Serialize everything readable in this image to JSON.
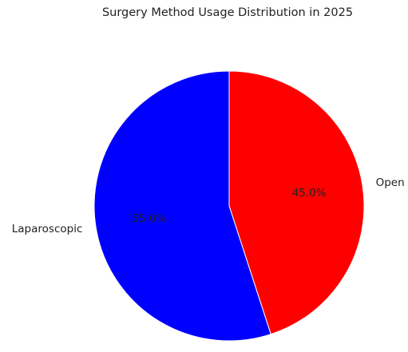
{
  "chart_data": {
    "type": "pie",
    "title": "Surgery Method Usage Distribution in 2025",
    "slices": [
      {
        "label": "Open",
        "value": 45.0,
        "pct_label": "45.0%",
        "color": "#ff0000"
      },
      {
        "label": "Laparoscopic",
        "value": 55.0,
        "pct_label": "55.0%",
        "color": "#0000ff"
      }
    ],
    "start_angle_deg": 90,
    "direction": "clockwise",
    "edge_color": "#ffffff",
    "legend": false
  }
}
